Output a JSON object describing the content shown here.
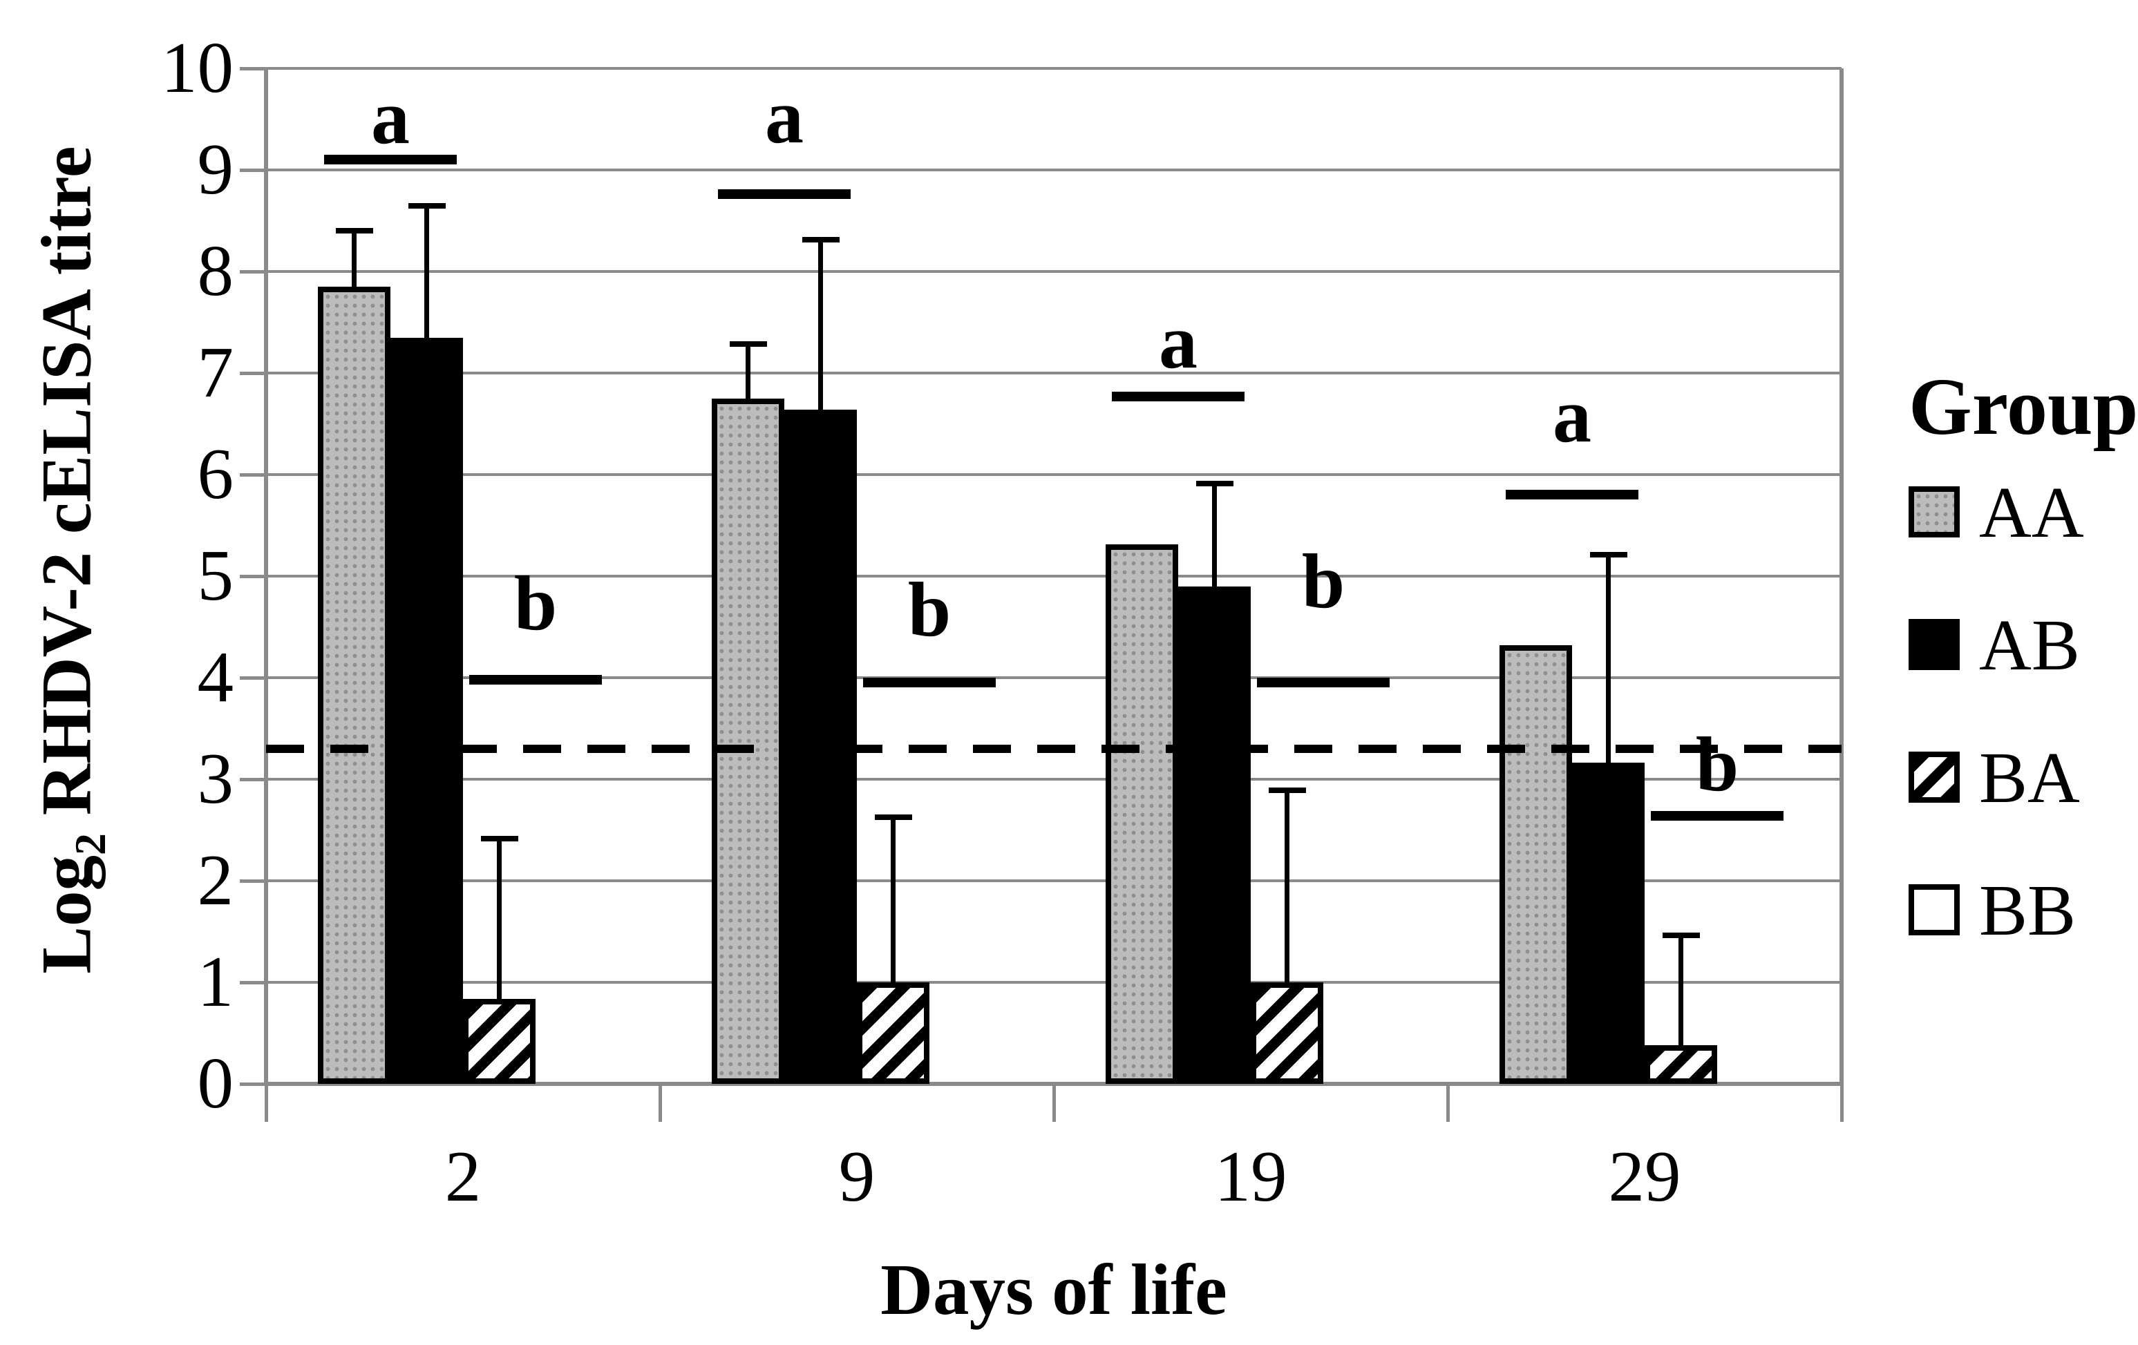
{
  "chart_data": {
    "type": "bar",
    "xlabel": "Days of life",
    "ylabel_prefix": "Log",
    "ylabel_sub": "2",
    "ylabel_rest": " RHDV-2 cELISA titre",
    "ylim": [
      0,
      10
    ],
    "yticks": [
      0,
      1,
      2,
      3,
      4,
      5,
      6,
      7,
      8,
      9,
      10
    ],
    "grid": true,
    "categories": [
      "2",
      "9",
      "19",
      "29"
    ],
    "series": [
      {
        "name": "AA",
        "style": "dotted-gray",
        "values": [
          7.85,
          6.75,
          5.31,
          4.32
        ],
        "err_top": [
          8.41,
          7.29,
          null,
          null
        ]
      },
      {
        "name": "AB",
        "style": "solid-black",
        "values": [
          7.35,
          6.64,
          4.9,
          3.16
        ],
        "err_top": [
          8.65,
          8.32,
          5.92,
          5.22
        ]
      },
      {
        "name": "BA",
        "style": "hatched",
        "values": [
          0.84,
          1.0,
          1.0,
          0.38
        ],
        "err_top": [
          2.42,
          2.63,
          2.9,
          1.47
        ]
      },
      {
        "name": "BB",
        "style": "white",
        "values": [
          0,
          0,
          0,
          0
        ],
        "err_top": [
          null,
          null,
          null,
          null
        ]
      }
    ],
    "cutoff_line": 3.3,
    "sig_labels": {
      "upper": "a",
      "lower": "b"
    },
    "group_annotations": [
      {
        "a_line": 9.1,
        "a_label_bottom": 9.27,
        "b_line": 3.98,
        "b_label_bottom": 4.48
      },
      {
        "a_line": 8.76,
        "a_label_bottom": 9.28,
        "b_line": 3.95,
        "b_label_bottom": 4.42
      },
      {
        "a_line": 6.77,
        "a_label_bottom": 7.06,
        "b_line": 3.95,
        "b_label_bottom": 4.7
      },
      {
        "a_line": 5.8,
        "a_label_bottom": 6.33,
        "b_line": 2.64,
        "b_label_bottom": 2.9
      }
    ],
    "legend": {
      "title": "Group",
      "items": [
        {
          "label": "AA",
          "style": "dotted-gray"
        },
        {
          "label": "AB",
          "style": "solid-black"
        },
        {
          "label": "BA",
          "style": "hatched"
        },
        {
          "label": "BB",
          "style": "white"
        }
      ]
    },
    "colors": {
      "grid": "#8a8a8a",
      "axis": "#8a8a8a",
      "bar_gray": "#bcbcbc",
      "bar_black": "#000000",
      "bar_white": "#ffffff",
      "annotation": "#000000"
    }
  }
}
